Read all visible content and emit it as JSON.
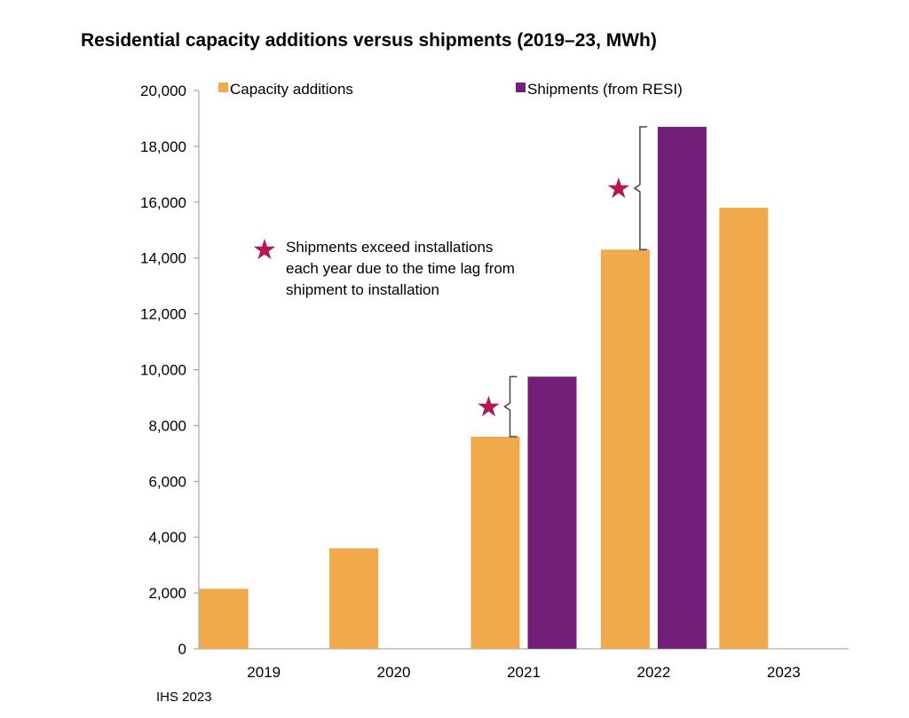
{
  "chart_data": {
    "type": "bar",
    "title": "Residential capacity additions versus shipments (2019–23, MWh)",
    "xlabel": "",
    "ylabel": "",
    "categories": [
      "2019",
      "2020",
      "2021",
      "2022",
      "2023"
    ],
    "series": [
      {
        "name": "Capacity additions",
        "color": "#F0A94B",
        "values": [
          2150,
          3600,
          7600,
          14300,
          15800
        ]
      },
      {
        "name": "Shipments (from RESI)",
        "color": "#731F7A",
        "values": [
          null,
          null,
          9750,
          18700,
          null
        ]
      }
    ],
    "ylim": [
      0,
      20000
    ],
    "yticks": [
      0,
      2000,
      4000,
      6000,
      8000,
      10000,
      12000,
      14000,
      16000,
      18000,
      20000
    ],
    "ytick_labels": [
      "0",
      "2,000",
      "4,000",
      "6,000",
      "8,000",
      "10,000",
      "12,000",
      "14,000",
      "16,000",
      "18,000",
      "20,000"
    ],
    "grid": false,
    "legend_position": "top",
    "annotation": {
      "marker": "★",
      "marker_color": "#B5174F",
      "lines": [
        "Shipments exceed installations",
        "each year due to the time lag from",
        "shipment to installation"
      ]
    },
    "source": "IHS 2023"
  }
}
